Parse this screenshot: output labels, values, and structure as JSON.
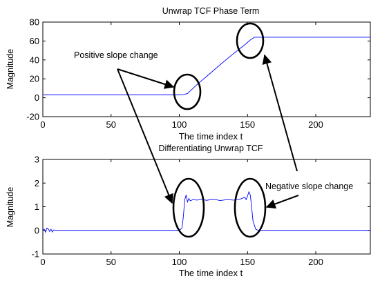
{
  "chart_data": [
    {
      "type": "line",
      "title": "Unwrap TCF Phase Term",
      "xlabel": "The time index t",
      "ylabel": "Magnitude",
      "xlim": [
        0,
        240
      ],
      "ylim": [
        -20,
        80
      ],
      "xticks": [
        0,
        50,
        100,
        150,
        200
      ],
      "yticks": [
        -20,
        0,
        20,
        40,
        60,
        80
      ],
      "grid": false,
      "line_color": "#0000ff",
      "series": [
        {
          "x": [
            0,
            100,
            103,
            106,
            109,
            113,
            120,
            130,
            140,
            148,
            152,
            155,
            240
          ],
          "y": [
            3,
            3,
            3.3,
            4.5,
            8.5,
            14,
            22.5,
            35,
            47,
            56,
            61,
            64,
            64
          ]
        }
      ],
      "annotations": [
        {
          "text": "Positive slope change"
        }
      ]
    },
    {
      "type": "line",
      "title": "Differentiating Unwrap TCF",
      "xlabel": "The time index t",
      "ylabel": "Magnitude",
      "xlim": [
        0,
        240
      ],
      "ylim": [
        -1,
        3
      ],
      "xticks": [
        0,
        50,
        100,
        150,
        200
      ],
      "yticks": [
        -1,
        0,
        1,
        2,
        3
      ],
      "grid": false,
      "line_color": "#0000ff",
      "series": [
        {
          "x": [
            0,
            1,
            2,
            3,
            4,
            5,
            6,
            7,
            8,
            10,
            100,
            102,
            103,
            104,
            105,
            106,
            107,
            108,
            110,
            113,
            116,
            120,
            125,
            130,
            135,
            140,
            145,
            148,
            149,
            150,
            151,
            152,
            153,
            154,
            156,
            158,
            240
          ],
          "y": [
            0,
            0.05,
            -0.08,
            0.1,
            0.06,
            -0.05,
            0.05,
            -0.07,
            0.02,
            0,
            0,
            0.1,
            0.6,
            1.3,
            1.5,
            1.2,
            1.35,
            1.25,
            1.3,
            1.28,
            1.32,
            1.27,
            1.32,
            1.26,
            1.3,
            1.28,
            1.33,
            1.4,
            1.3,
            1.45,
            1.63,
            1.5,
            1.0,
            0.4,
            0.05,
            0,
            0
          ]
        }
      ],
      "annotations": [
        {
          "text": "Negative slope change"
        }
      ]
    }
  ]
}
